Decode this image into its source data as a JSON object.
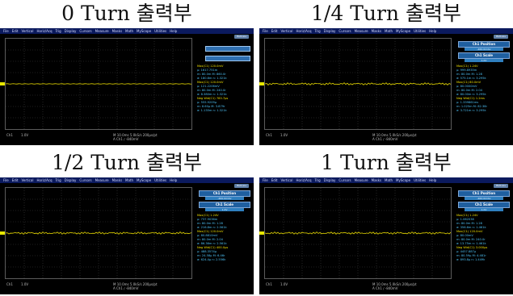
{
  "menu": [
    "File",
    "Edit",
    "Vertical",
    "Horiz/Acq",
    "Trig",
    "Display",
    "Cursors",
    "Measure",
    "Masks",
    "Math",
    "MyScope",
    "Utilities",
    "Help"
  ],
  "buttons_label": "Buttons",
  "panels": [
    {
      "title": "0 Turn 출력부",
      "show_tabs": false,
      "trace": "flat",
      "meas": [
        "Max(C1)   120.0mV",
        "μ: 1617.751m",
        "m: 80.0m   M: 860.0r",
        "σ: 180.8m  n: 1.321k",
        "Max(C1)   120.0mV",
        "μ: 121.2206mV",
        "m: 80.0m   M: 240.0r",
        "σ: 8.380m  n: 1.321k",
        "Neg Wid(C1) 783.7μs",
        "μ: 555.9209μ",
        "m: 8.60μ   M: 3.879r",
        "σ: 1.135m  n: 1.321k"
      ],
      "ch_label": "Ch1",
      "ch_scale": "1.0V",
      "timebase": "M 10.0ms 5.0kS/s     200μs/pt",
      "trigger": "A  Ch1  ∕  -840mV"
    },
    {
      "title": "1/4 Turn 출력부",
      "show_tabs": true,
      "trace": "noisy",
      "tab1": "Ch1 Position",
      "tab1_val": "-460.0mdiv",
      "tab2": "Ch1 Scale",
      "tab2_val": "1.0V",
      "meas": [
        "Max(C1)     1.24V",
        "μ: 999.8935m",
        "m: 80.0m   M: 1.28",
        "σ: 575.1m  n: 3.295k",
        "Max(C1)     80.0mV",
        "μ: 80.0000mV",
        "m: 80.0m   M: 2.04",
        "σ: 80.00m  n: 3.295k",
        "Neg Wid(C1) 1.2ms",
        "μ: 1.339861ms",
        "m: 1.025m  M: 82.38r",
        "σ: 3.721m  n: 3.295k"
      ],
      "ch_label": "Ch1",
      "ch_scale": "1.0V",
      "timebase": "M 10.0ms 5.0kS/s     200μs/pt",
      "trigger": "A  Ch1  ∕  -840mV"
    },
    {
      "title": "1/2 Turn 출력부",
      "show_tabs": true,
      "trace": "noisy",
      "tab1": "Ch1 Position",
      "tab1_val": "-460.0mdiv",
      "tab2": "Ch1 Scale",
      "tab2_val": "1.0V",
      "meas": [
        "Max(C1)     1.24V",
        "μ: 737.9036m",
        "m: 80.0m   M: 1.28",
        "σ: 216.8m  n: 2.561k",
        "Max(C1)   120.0mV",
        "μ: 80.8810mV",
        "m: 80.0m   M: 2.04",
        "σ: 86.36m  n: 2.561k",
        "Neg Wid(C1) 400.0μs",
        "μ: 488.3574μ",
        "m: 24.58μ  M: 6.46r",
        "σ: 624.4μ  n: 2.556k"
      ],
      "ch_label": "Ch1",
      "ch_scale": "1.0V",
      "timebase": "M 10.0ms 5.0kS/s     200μs/pt",
      "trigger": "A  Ch1  ∕  -840mV"
    },
    {
      "title": "1 Turn 출력부",
      "show_tabs": true,
      "trace": "noisy",
      "tab1": "Ch1 Position",
      "tab1_val": "-460.0mdiv",
      "tab2": "Ch1 Scale",
      "tab2_val": "1.0V",
      "meas": [
        "Max(C1)     1.24V",
        "μ: 1.062038",
        "m: 80.0m   M: 1.28",
        "σ: 356.6m  n: 1.461k",
        "Max(C1)   120.0mV",
        "μ: 80.00mV",
        "m: 80.0m   M: 240.0r",
        "σ: 13.75m  n: 1.461k",
        "Neg Wid(C1) 3.000μs",
        "μ: 4457.887μ",
        "m: 80.59μ  M: 4.481r",
        "σ: 893.8μ  n: 1.449k"
      ],
      "ch_label": "Ch1",
      "ch_scale": "1.0V",
      "timebase": "M 10.0ms 5.0kS/s     200μs/pt",
      "trigger": "A  Ch1  ∕  -840mV"
    }
  ]
}
